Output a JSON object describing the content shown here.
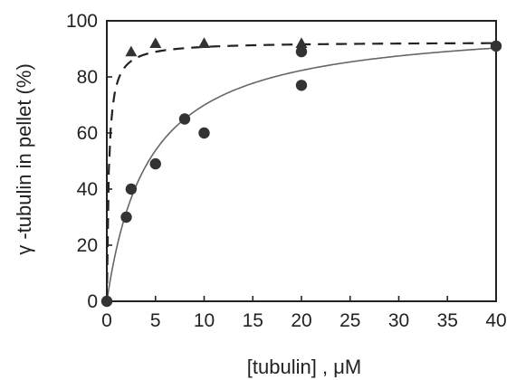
{
  "chart_data": {
    "type": "scatter",
    "xlabel": "[tubulin] , μM",
    "ylabel": "γ -tubulin in pellet (%)",
    "xlim": [
      0,
      40
    ],
    "ylim": [
      0,
      100
    ],
    "xticks": [
      0,
      5,
      10,
      15,
      20,
      25,
      30,
      35,
      40
    ],
    "yticks": [
      0,
      20,
      40,
      60,
      80,
      100
    ],
    "grid": false,
    "series": [
      {
        "marker": "circle",
        "fit_line": "solid",
        "x": [
          0,
          2,
          2.5,
          5,
          8,
          10,
          20,
          20,
          40
        ],
        "y": [
          0,
          30,
          40,
          49,
          65,
          60,
          77,
          89,
          91
        ]
      },
      {
        "marker": "triangle",
        "fit_line": "dashed",
        "x": [
          2.5,
          5,
          10,
          20
        ],
        "y": [
          89,
          92,
          92,
          92
        ]
      }
    ]
  }
}
